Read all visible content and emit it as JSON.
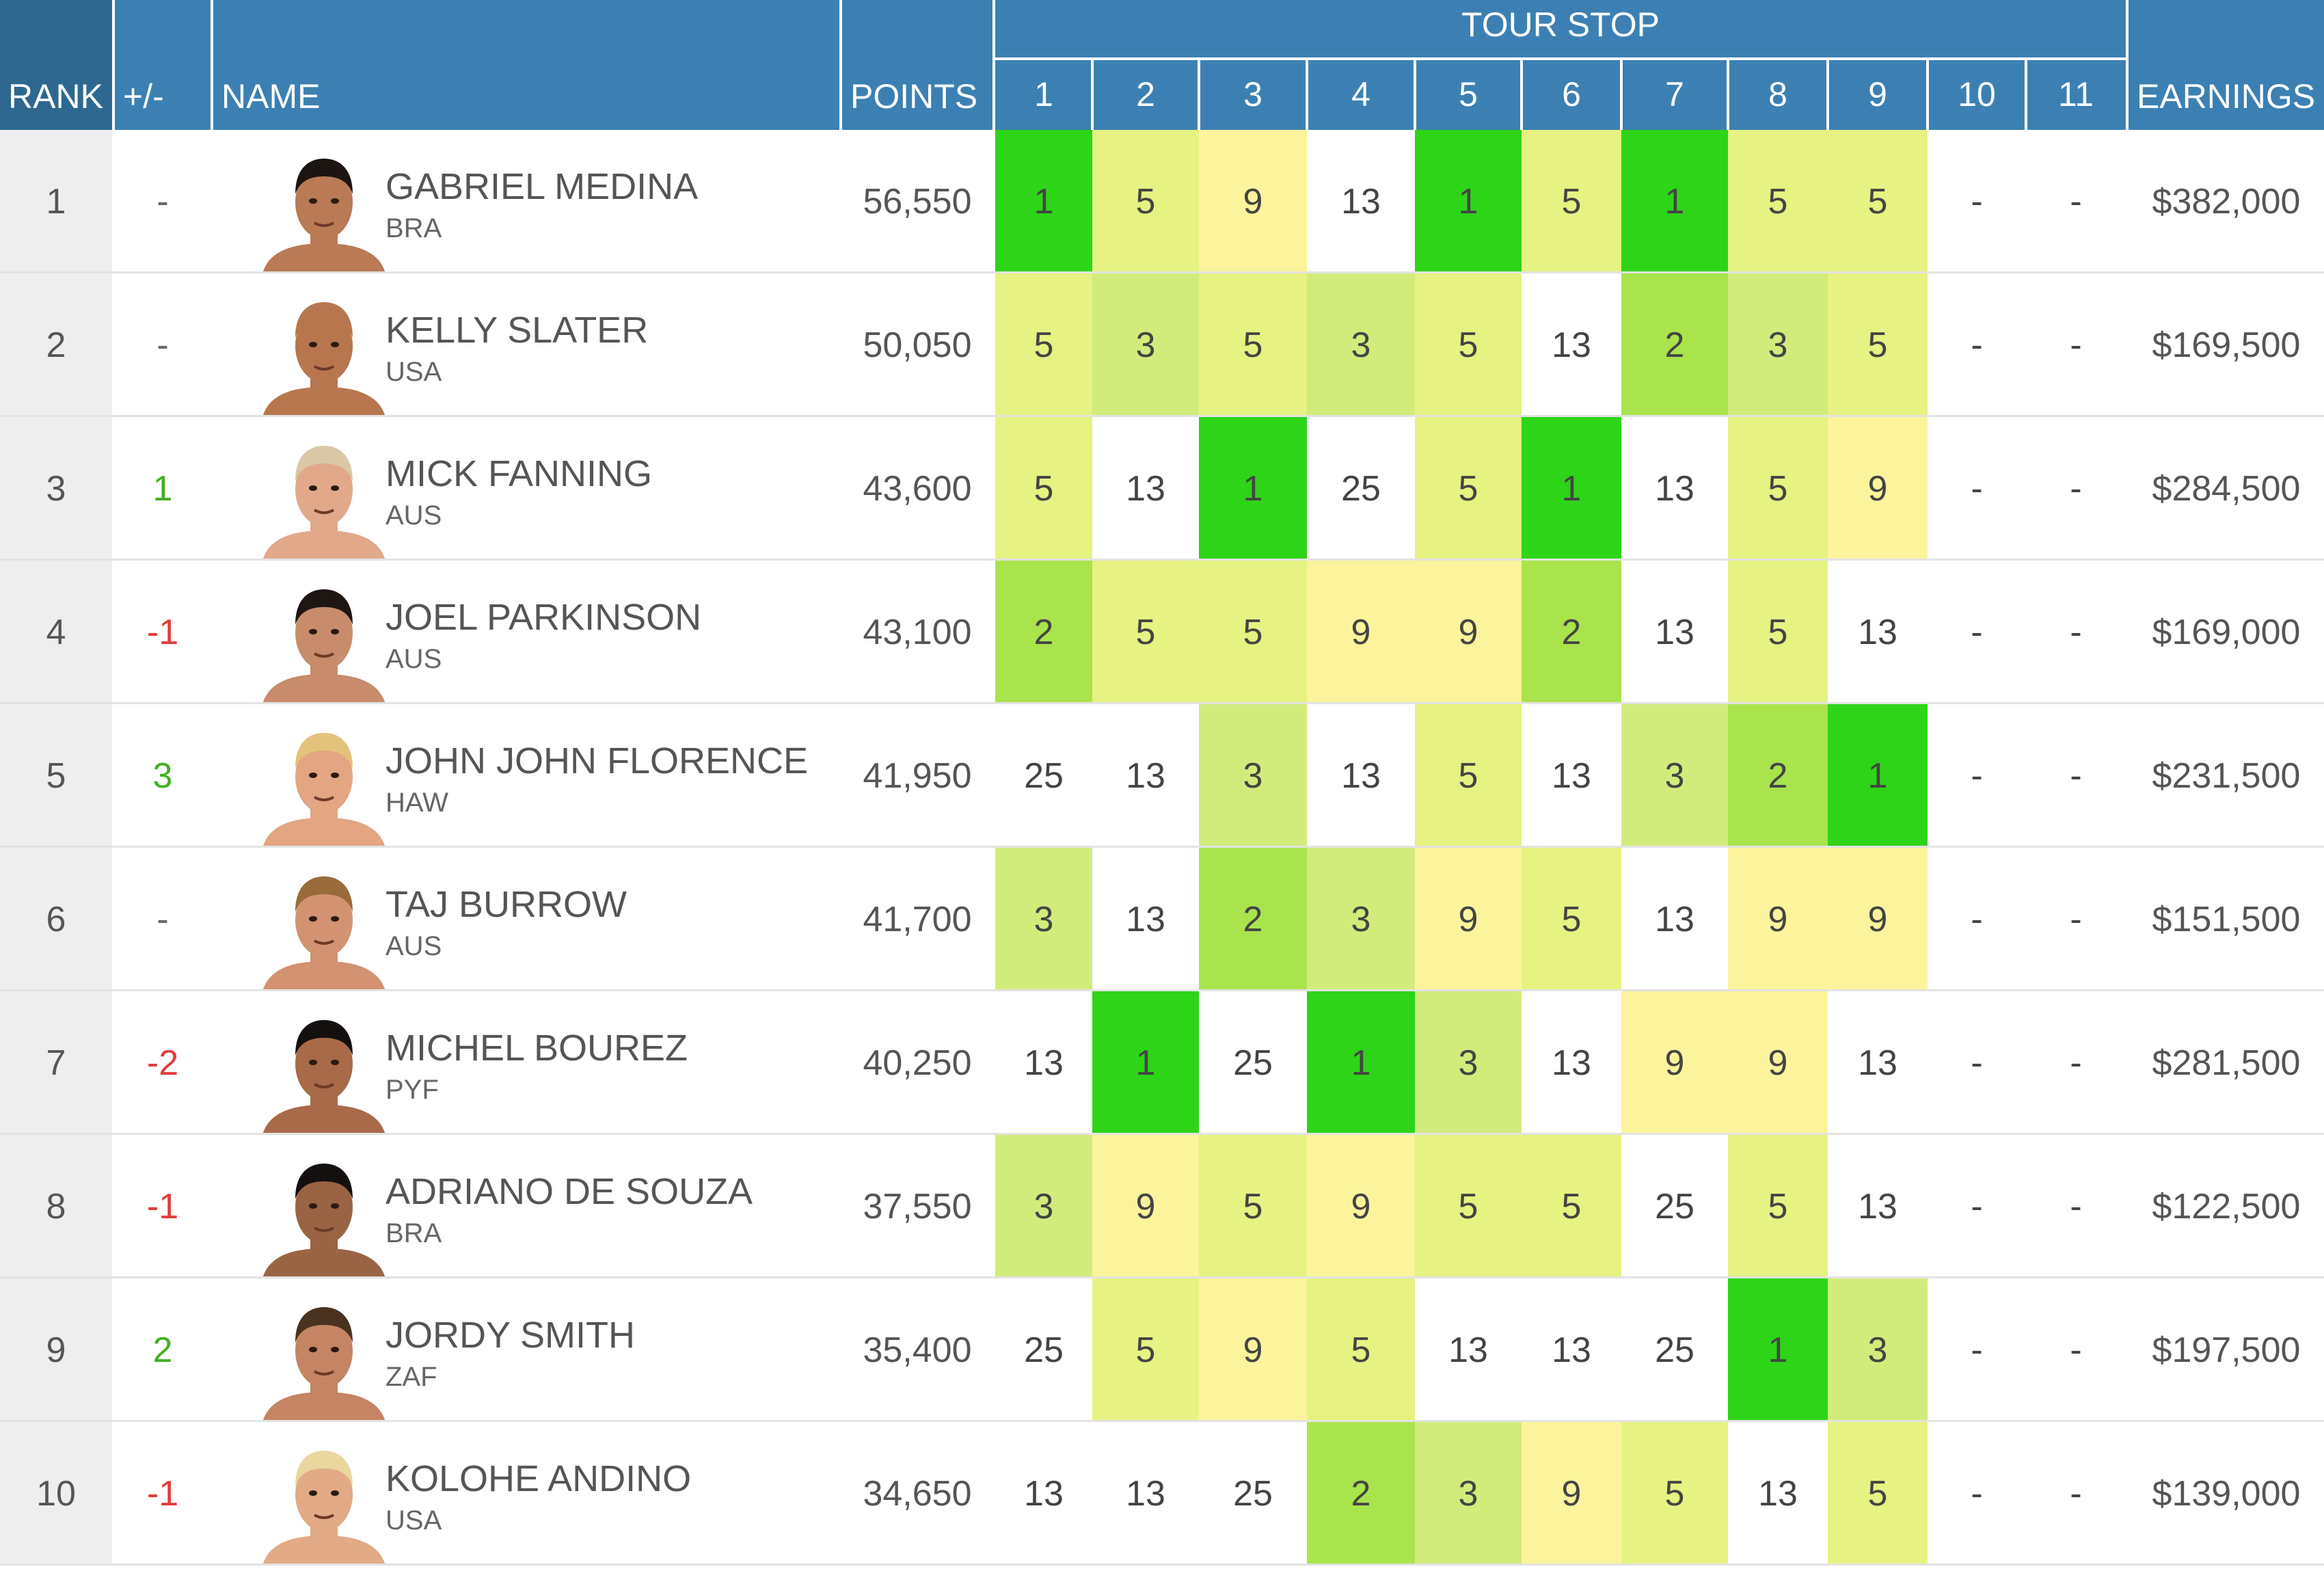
{
  "headers": {
    "rank": "RANK",
    "change": "+/-",
    "name": "NAME",
    "points": "POINTS",
    "tour_stop": "TOUR STOP",
    "stops": [
      "1",
      "2",
      "3",
      "4",
      "5",
      "6",
      "7",
      "8",
      "9",
      "10",
      "11"
    ],
    "earnings": "EARNINGS"
  },
  "colors": {
    "header_bg": "#3c80b3",
    "rank_header_bg": "#2e6890",
    "result_1": "#2ed418",
    "result_2": "#a9e44c",
    "result_3": "#d2ec7c",
    "result_5": "#e6f281",
    "result_9": "#fbf49c",
    "positive_change": "#43b022",
    "negative_change": "#e23b3b"
  },
  "rows": [
    {
      "rank": "1",
      "change": "-",
      "name": "GABRIEL MEDINA",
      "country": "BRA",
      "points": "56,550",
      "stops": [
        "1",
        "5",
        "9",
        "13",
        "1",
        "5",
        "1",
        "5",
        "5",
        "-",
        "-"
      ],
      "earnings": "$382,000"
    },
    {
      "rank": "2",
      "change": "-",
      "name": "KELLY SLATER",
      "country": "USA",
      "points": "50,050",
      "stops": [
        "5",
        "3",
        "5",
        "3",
        "5",
        "13",
        "2",
        "3",
        "5",
        "-",
        "-"
      ],
      "earnings": "$169,500"
    },
    {
      "rank": "3",
      "change": "1",
      "name": "MICK FANNING",
      "country": "AUS",
      "points": "43,600",
      "stops": [
        "5",
        "13",
        "1",
        "25",
        "5",
        "1",
        "13",
        "5",
        "9",
        "-",
        "-"
      ],
      "earnings": "$284,500"
    },
    {
      "rank": "4",
      "change": "-1",
      "name": "JOEL PARKINSON",
      "country": "AUS",
      "points": "43,100",
      "stops": [
        "2",
        "5",
        "5",
        "9",
        "9",
        "2",
        "13",
        "5",
        "13",
        "-",
        "-"
      ],
      "earnings": "$169,000"
    },
    {
      "rank": "5",
      "change": "3",
      "name": "JOHN JOHN FLORENCE",
      "country": "HAW",
      "points": "41,950",
      "stops": [
        "25",
        "13",
        "3",
        "13",
        "5",
        "13",
        "3",
        "2",
        "1",
        "-",
        "-"
      ],
      "earnings": "$231,500"
    },
    {
      "rank": "6",
      "change": "-",
      "name": "TAJ BURROW",
      "country": "AUS",
      "points": "41,700",
      "stops": [
        "3",
        "13",
        "2",
        "3",
        "9",
        "5",
        "13",
        "9",
        "9",
        "-",
        "-"
      ],
      "earnings": "$151,500"
    },
    {
      "rank": "7",
      "change": "-2",
      "name": "MICHEL BOUREZ",
      "country": "PYF",
      "points": "40,250",
      "stops": [
        "13",
        "1",
        "25",
        "1",
        "3",
        "13",
        "9",
        "9",
        "13",
        "-",
        "-"
      ],
      "earnings": "$281,500"
    },
    {
      "rank": "8",
      "change": "-1",
      "name": "ADRIANO DE SOUZA",
      "country": "BRA",
      "points": "37,550",
      "stops": [
        "3",
        "9",
        "5",
        "9",
        "5",
        "5",
        "25",
        "5",
        "13",
        "-",
        "-"
      ],
      "earnings": "$122,500"
    },
    {
      "rank": "9",
      "change": "2",
      "name": "JORDY SMITH",
      "country": "ZAF",
      "points": "35,400",
      "stops": [
        "25",
        "5",
        "9",
        "5",
        "13",
        "13",
        "25",
        "1",
        "3",
        "-",
        "-"
      ],
      "earnings": "$197,500"
    },
    {
      "rank": "10",
      "change": "-1",
      "name": "KOLOHE ANDINO",
      "country": "USA",
      "points": "34,650",
      "stops": [
        "13",
        "13",
        "25",
        "2",
        "3",
        "9",
        "5",
        "13",
        "5",
        "-",
        "-"
      ],
      "earnings": "$139,000"
    }
  ]
}
